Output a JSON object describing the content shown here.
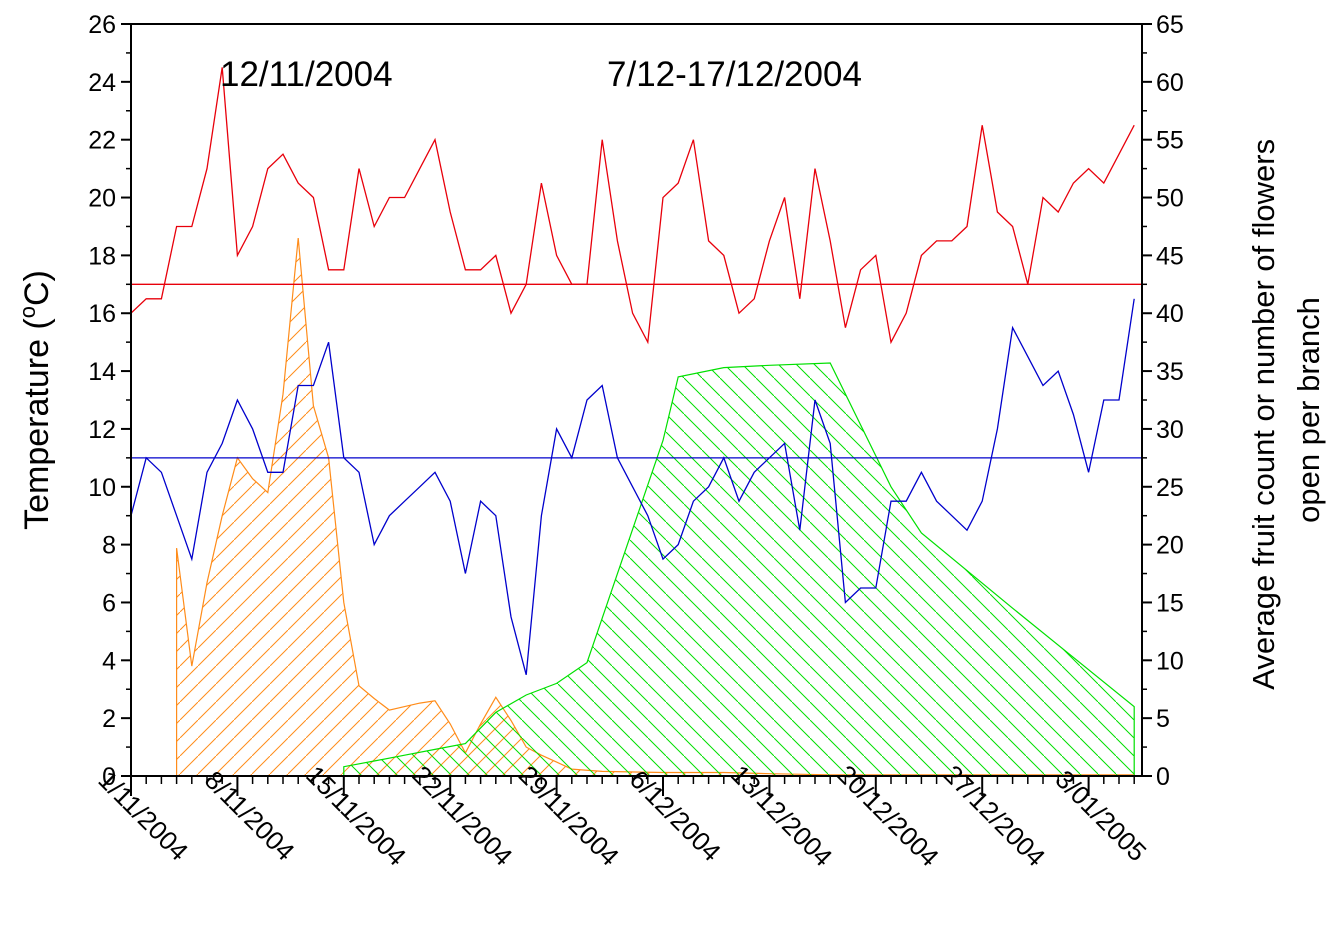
{
  "colors": {
    "max_temp": "#e8000b",
    "min_temp": "#0000cc",
    "fruit": "#ff8c1a",
    "flowers": "#00e000",
    "axes": "#000000"
  },
  "chart_data": {
    "type": "line",
    "annotations": [
      "12/11/2004",
      "7/12-17/12/2004"
    ],
    "ylabel_left": "Temperature (°C)",
    "ylabel_left_parts": {
      "text": "Temperature (",
      "sup": "o",
      "unit": "C)"
    },
    "ylabel_right": [
      "Average fruit count or number of flowers",
      "open per branch"
    ],
    "xlabel": "",
    "x_tick_labels": [
      "1/11/2004",
      "8/11/2004",
      "15/11/2004",
      "22/11/2004",
      "29/11/2004",
      "6/12/2004",
      "13/12/2004",
      "20/12/2004",
      "27/12/2004",
      "3/01/2005"
    ],
    "x_tick_days": [
      0,
      7,
      14,
      21,
      28,
      35,
      42,
      49,
      56,
      63
    ],
    "xlim_days": [
      0,
      67
    ],
    "y_left_lim": [
      0,
      26
    ],
    "y_left_ticks": [
      0,
      2,
      4,
      6,
      8,
      10,
      12,
      14,
      16,
      18,
      20,
      22,
      24,
      26
    ],
    "y_right_lim": [
      0,
      65
    ],
    "y_right_ticks": [
      0,
      5,
      10,
      15,
      20,
      25,
      30,
      35,
      40,
      45,
      50,
      55,
      60,
      65
    ],
    "grid": false,
    "series": [
      {
        "axis": "left",
        "style": "line",
        "color": "#e8000b",
        "points": [
          [
            0,
            16
          ],
          [
            1,
            16.5
          ],
          [
            2,
            16.5
          ],
          [
            3,
            19
          ],
          [
            4,
            19
          ],
          [
            5,
            21
          ],
          [
            6,
            24.5
          ],
          [
            7,
            18
          ],
          [
            8,
            19
          ],
          [
            9,
            21
          ],
          [
            10,
            21.5
          ],
          [
            11,
            20.5
          ],
          [
            12,
            20
          ],
          [
            13,
            17.5
          ],
          [
            14,
            17.5
          ],
          [
            15,
            21
          ],
          [
            16,
            19
          ],
          [
            17,
            20
          ],
          [
            18,
            20
          ],
          [
            19,
            21
          ],
          [
            20,
            22
          ],
          [
            21,
            19.5
          ],
          [
            22,
            17.5
          ],
          [
            23,
            17.5
          ],
          [
            24,
            18
          ],
          [
            25,
            16
          ],
          [
            26,
            17
          ],
          [
            27,
            20.5
          ],
          [
            28,
            18
          ],
          [
            29,
            17
          ],
          [
            30,
            17
          ],
          [
            31,
            22
          ],
          [
            32,
            18.5
          ],
          [
            33,
            16
          ],
          [
            34,
            15
          ],
          [
            35,
            20
          ],
          [
            36,
            20.5
          ],
          [
            37,
            22
          ],
          [
            38,
            18.5
          ],
          [
            39,
            18
          ],
          [
            40,
            16
          ],
          [
            41,
            16.5
          ],
          [
            42,
            18.5
          ],
          [
            43,
            20
          ],
          [
            44,
            16.5
          ],
          [
            45,
            21
          ],
          [
            46,
            18.5
          ],
          [
            47,
            15.5
          ],
          [
            48,
            17.5
          ],
          [
            49,
            18
          ],
          [
            50,
            15
          ],
          [
            51,
            16
          ],
          [
            52,
            18
          ],
          [
            53,
            18.5
          ],
          [
            54,
            18.5
          ],
          [
            55,
            19
          ],
          [
            56,
            22.5
          ],
          [
            57,
            19.5
          ],
          [
            58,
            19
          ],
          [
            59,
            17
          ],
          [
            60,
            20
          ],
          [
            61,
            19.5
          ],
          [
            62,
            20.5
          ],
          [
            63,
            21
          ],
          [
            64,
            20.5
          ],
          [
            65,
            21.5
          ],
          [
            66,
            22.5
          ]
        ]
      },
      {
        "axis": "left",
        "style": "hline",
        "color": "#e8000b",
        "value": 17
      },
      {
        "axis": "left",
        "style": "line",
        "color": "#0000cc",
        "points": [
          [
            0,
            9
          ],
          [
            1,
            11
          ],
          [
            2,
            10.5
          ],
          [
            3,
            9
          ],
          [
            4,
            7.5
          ],
          [
            5,
            10.5
          ],
          [
            6,
            11.5
          ],
          [
            7,
            13
          ],
          [
            8,
            12
          ],
          [
            9,
            10.5
          ],
          [
            10,
            10.5
          ],
          [
            11,
            13.5
          ],
          [
            12,
            13.5
          ],
          [
            13,
            15
          ],
          [
            14,
            11
          ],
          [
            15,
            10.5
          ],
          [
            16,
            8
          ],
          [
            17,
            9
          ],
          [
            18,
            9.5
          ],
          [
            19,
            10
          ],
          [
            20,
            10.5
          ],
          [
            21,
            9.5
          ],
          [
            22,
            7
          ],
          [
            23,
            9.5
          ],
          [
            24,
            9
          ],
          [
            25,
            5.5
          ],
          [
            26,
            3.5
          ],
          [
            27,
            9
          ],
          [
            28,
            12
          ],
          [
            29,
            11
          ],
          [
            30,
            13
          ],
          [
            31,
            13.5
          ],
          [
            32,
            11
          ],
          [
            33,
            10
          ],
          [
            34,
            9
          ],
          [
            35,
            7.5
          ],
          [
            36,
            8
          ],
          [
            37,
            9.5
          ],
          [
            38,
            10
          ],
          [
            39,
            11
          ],
          [
            40,
            9.5
          ],
          [
            41,
            10.5
          ],
          [
            42,
            11
          ],
          [
            43,
            11.5
          ],
          [
            44,
            8.5
          ],
          [
            45,
            13
          ],
          [
            46,
            11.5
          ],
          [
            47,
            6
          ],
          [
            48,
            6.5
          ],
          [
            49,
            6.5
          ],
          [
            50,
            9.5
          ],
          [
            51,
            9.5
          ],
          [
            52,
            10.5
          ],
          [
            53,
            9.5
          ],
          [
            54,
            9
          ],
          [
            55,
            8.5
          ],
          [
            56,
            9.5
          ],
          [
            57,
            12
          ],
          [
            58,
            15.5
          ],
          [
            59,
            14.5
          ],
          [
            60,
            13.5
          ],
          [
            61,
            14
          ],
          [
            62,
            12.5
          ],
          [
            63,
            10.5
          ],
          [
            64,
            13
          ],
          [
            65,
            13
          ],
          [
            66,
            16.5
          ]
        ]
      },
      {
        "axis": "left",
        "style": "hline",
        "color": "#0000cc",
        "value": 11
      },
      {
        "axis": "right",
        "style": "hatched_area",
        "hatch": "forward",
        "color": "#ff8c1a",
        "points": [
          [
            3,
            0
          ],
          [
            3,
            19.7
          ],
          [
            4,
            9.5
          ],
          [
            5,
            16.7
          ],
          [
            6,
            22.5
          ],
          [
            7,
            27.5
          ],
          [
            8,
            25.7
          ],
          [
            9,
            24.5
          ],
          [
            10,
            33
          ],
          [
            11,
            46.5
          ],
          [
            12,
            32
          ],
          [
            13,
            27.5
          ],
          [
            14,
            15
          ],
          [
            15,
            7.8
          ],
          [
            16,
            6.7
          ],
          [
            17,
            5.7
          ],
          [
            18,
            6
          ],
          [
            19,
            6.3
          ],
          [
            20,
            6.5
          ],
          [
            21,
            4.5
          ],
          [
            22,
            2
          ],
          [
            23,
            4.5
          ],
          [
            24,
            6.8
          ],
          [
            25,
            4.8
          ],
          [
            26,
            2.5
          ],
          [
            27,
            1.8
          ],
          [
            28,
            1.2
          ],
          [
            29,
            0.6
          ],
          [
            31,
            0.4
          ],
          [
            35,
            0.3
          ],
          [
            39,
            0.3
          ],
          [
            42,
            0.2
          ],
          [
            46,
            0.1
          ],
          [
            49,
            0.1
          ],
          [
            60,
            0.1
          ],
          [
            66,
            0.1
          ],
          [
            66,
            0
          ],
          [
            3,
            0
          ]
        ]
      },
      {
        "axis": "right",
        "style": "hatched_area",
        "hatch": "backward",
        "color": "#00e000",
        "points": [
          [
            14,
            0
          ],
          [
            14,
            0.8
          ],
          [
            16,
            1.3
          ],
          [
            18,
            1.8
          ],
          [
            20,
            2.3
          ],
          [
            22,
            2.8
          ],
          [
            24,
            5.5
          ],
          [
            26,
            7
          ],
          [
            28,
            8
          ],
          [
            30,
            9.8
          ],
          [
            35,
            29
          ],
          [
            36,
            34.5
          ],
          [
            39,
            35.3
          ],
          [
            42,
            35.5
          ],
          [
            46,
            35.7
          ],
          [
            50,
            25
          ],
          [
            52,
            21
          ],
          [
            58,
            14.5
          ],
          [
            66,
            6
          ],
          [
            66,
            0
          ],
          [
            14,
            0
          ]
        ]
      }
    ]
  }
}
